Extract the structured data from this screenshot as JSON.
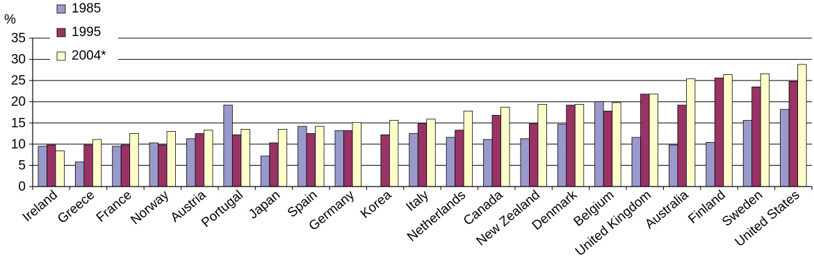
{
  "chart_data": {
    "type": "bar",
    "ylabel": "%",
    "ylim": [
      0,
      35
    ],
    "yticks": [
      "0",
      "5",
      "10",
      "15",
      "20",
      "25",
      "30",
      "35"
    ],
    "grid": "horizontal",
    "legend_position": "top-left",
    "categories": [
      "Ireland",
      "Greece",
      "France",
      "Norway",
      "Austria",
      "Portugal",
      "Japan",
      "Spain",
      "Germany",
      "Korea",
      "Italy",
      "Netherlands",
      "Canada",
      "New Zealand",
      "Denmark",
      "Belgium",
      "United Kingdom",
      "Australia",
      "Finland",
      "Sweden",
      "United States"
    ],
    "series": [
      {
        "name": "1985",
        "color": "#9999cc",
        "values": [
          9.5,
          5.8,
          9.5,
          10.3,
          11.3,
          19.2,
          7.2,
          14.2,
          13.2,
          null,
          12.5,
          11.6,
          11.1,
          11.3,
          14.7,
          20.0,
          11.6,
          9.8,
          10.4,
          15.6,
          18.2
        ]
      },
      {
        "name": "1995",
        "color": "#993366",
        "values": [
          9.8,
          9.8,
          9.8,
          9.8,
          12.5,
          12.2,
          10.3,
          12.5,
          13.2,
          12.2,
          14.8,
          13.3,
          16.8,
          14.8,
          19.2,
          17.8,
          21.8,
          19.2,
          25.6,
          23.5,
          24.8
        ]
      },
      {
        "name": "2004*",
        "color": "#ffffcc",
        "values": [
          8.4,
          11.1,
          12.5,
          13.0,
          13.3,
          13.5,
          13.5,
          14.2,
          15.1,
          15.6,
          15.9,
          17.8,
          18.7,
          19.4,
          19.4,
          19.8,
          21.8,
          25.4,
          26.4,
          26.6,
          28.8
        ]
      }
    ]
  }
}
